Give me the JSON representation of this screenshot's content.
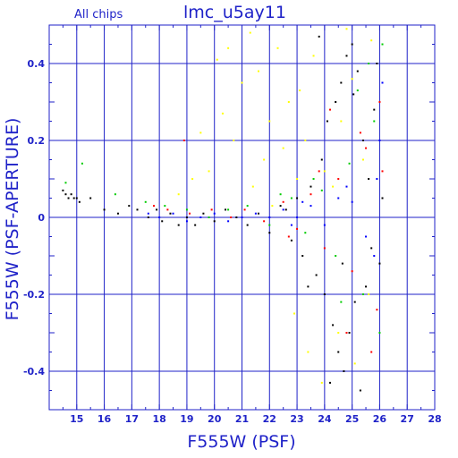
{
  "chart_data": {
    "type": "scatter",
    "title": "lmc_u5ay11",
    "subtitle": "All chips",
    "xlabel": "F555W (PSF)",
    "ylabel": "F555W (PSF-APERTURE)",
    "xlim": [
      14,
      28
    ],
    "ylim": [
      -0.5,
      0.5
    ],
    "x_ticks": [
      "15",
      "16",
      "17",
      "18",
      "19",
      "20",
      "21",
      "22",
      "23",
      "24",
      "25",
      "26",
      "27",
      "28"
    ],
    "y_ticks": [
      "0.4",
      "0.2",
      "0",
      "-0.2",
      "-0.4"
    ],
    "grid": true,
    "legend": "none",
    "series": [
      {
        "color": "#000000",
        "points": [
          [
            14.5,
            0.07
          ],
          [
            14.6,
            0.06
          ],
          [
            14.7,
            0.05
          ],
          [
            14.8,
            0.06
          ],
          [
            14.9,
            0.05
          ],
          [
            15.0,
            0.05
          ],
          [
            15.1,
            0.04
          ],
          [
            15.5,
            0.05
          ],
          [
            16.0,
            0.02
          ],
          [
            16.5,
            0.01
          ],
          [
            16.9,
            0.03
          ],
          [
            17.2,
            0.02
          ],
          [
            17.6,
            0.0
          ],
          [
            17.9,
            0.02
          ],
          [
            18.1,
            -0.01
          ],
          [
            18.4,
            0.01
          ],
          [
            18.7,
            -0.02
          ],
          [
            19.0,
            0.0
          ],
          [
            19.3,
            -0.02
          ],
          [
            19.6,
            0.01
          ],
          [
            20.0,
            -0.01
          ],
          [
            20.4,
            0.02
          ],
          [
            20.8,
            0.0
          ],
          [
            21.2,
            -0.02
          ],
          [
            21.6,
            0.01
          ],
          [
            22.0,
            -0.04
          ],
          [
            22.4,
            0.03
          ],
          [
            22.8,
            -0.06
          ],
          [
            23.0,
            0.05
          ],
          [
            23.2,
            -0.1
          ],
          [
            23.5,
            0.08
          ],
          [
            23.7,
            -0.15
          ],
          [
            23.9,
            0.15
          ],
          [
            24.0,
            -0.2
          ],
          [
            24.1,
            0.25
          ],
          [
            24.3,
            -0.28
          ],
          [
            24.4,
            0.3
          ],
          [
            24.5,
            -0.35
          ],
          [
            24.6,
            0.35
          ],
          [
            24.7,
            -0.4
          ],
          [
            24.8,
            0.42
          ],
          [
            24.9,
            -0.3
          ],
          [
            25.0,
            0.45
          ],
          [
            25.1,
            -0.22
          ],
          [
            25.2,
            0.38
          ],
          [
            25.3,
            -0.45
          ],
          [
            25.4,
            0.2
          ],
          [
            25.5,
            -0.18
          ],
          [
            25.6,
            0.1
          ],
          [
            25.7,
            -0.08
          ],
          [
            25.8,
            0.28
          ],
          [
            25.9,
            0.4
          ],
          [
            26.0,
            -0.12
          ],
          [
            26.1,
            0.05
          ],
          [
            23.8,
            0.47
          ],
          [
            24.2,
            -0.43
          ],
          [
            25.05,
            0.32
          ],
          [
            24.65,
            -0.12
          ],
          [
            23.4,
            -0.18
          ],
          [
            22.6,
            0.02
          ]
        ]
      },
      {
        "color": "#ffff00",
        "points": [
          [
            20.1,
            0.41
          ],
          [
            20.5,
            0.44
          ],
          [
            21.0,
            0.35
          ],
          [
            21.3,
            0.48
          ],
          [
            21.6,
            0.38
          ],
          [
            22.0,
            0.25
          ],
          [
            22.3,
            0.44
          ],
          [
            22.5,
            0.18
          ],
          [
            22.7,
            0.3
          ],
          [
            23.0,
            0.1
          ],
          [
            23.3,
            0.2
          ],
          [
            23.6,
            0.42
          ],
          [
            24.0,
            0.12
          ],
          [
            24.3,
            0.08
          ],
          [
            24.6,
            0.25
          ],
          [
            25.0,
            0.36
          ],
          [
            25.4,
            0.15
          ],
          [
            25.7,
            0.46
          ],
          [
            18.7,
            0.06
          ],
          [
            19.2,
            0.1
          ],
          [
            19.8,
            0.12
          ],
          [
            20.7,
            0.2
          ],
          [
            21.4,
            0.08
          ],
          [
            22.1,
            0.03
          ],
          [
            22.9,
            -0.25
          ],
          [
            23.4,
            -0.35
          ],
          [
            23.9,
            -0.43
          ],
          [
            24.5,
            -0.3
          ],
          [
            25.1,
            -0.38
          ],
          [
            25.6,
            -0.2
          ],
          [
            23.1,
            0.33
          ],
          [
            24.8,
            0.49
          ],
          [
            21.8,
            0.15
          ],
          [
            20.3,
            0.27
          ],
          [
            19.5,
            0.22
          ]
        ]
      },
      {
        "color": "#ff0000",
        "points": [
          [
            17.8,
            0.03
          ],
          [
            18.3,
            0.02
          ],
          [
            19.1,
            0.01
          ],
          [
            19.9,
            0.02
          ],
          [
            20.6,
            0.0
          ],
          [
            21.1,
            0.02
          ],
          [
            21.8,
            -0.01
          ],
          [
            22.5,
            0.04
          ],
          [
            23.0,
            -0.03
          ],
          [
            23.5,
            0.06
          ],
          [
            24.0,
            -0.08
          ],
          [
            24.5,
            0.1
          ],
          [
            25.0,
            -0.14
          ],
          [
            25.5,
            0.18
          ],
          [
            25.9,
            -0.24
          ],
          [
            26.0,
            0.3
          ],
          [
            24.8,
            -0.3
          ],
          [
            25.3,
            0.22
          ],
          [
            23.8,
            0.12
          ],
          [
            22.7,
            -0.05
          ],
          [
            18.9,
            0.2
          ],
          [
            24.2,
            0.28
          ],
          [
            25.7,
            -0.35
          ],
          [
            26.1,
            0.12
          ]
        ]
      },
      {
        "color": "#00cc00",
        "points": [
          [
            14.6,
            0.09
          ],
          [
            15.2,
            0.14
          ],
          [
            16.4,
            0.06
          ],
          [
            17.5,
            0.04
          ],
          [
            18.2,
            0.03
          ],
          [
            19.0,
            0.02
          ],
          [
            19.8,
            0.0
          ],
          [
            20.5,
            0.02
          ],
          [
            21.2,
            0.03
          ],
          [
            22.0,
            -0.02
          ],
          [
            22.8,
            0.05
          ],
          [
            23.3,
            -0.04
          ],
          [
            23.9,
            0.07
          ],
          [
            24.4,
            -0.1
          ],
          [
            24.9,
            0.14
          ],
          [
            25.4,
            -0.2
          ],
          [
            25.8,
            0.25
          ],
          [
            26.0,
            -0.3
          ],
          [
            25.2,
            0.33
          ],
          [
            24.6,
            -0.22
          ],
          [
            25.6,
            0.4
          ],
          [
            26.1,
            0.45
          ],
          [
            23.6,
            0.1
          ],
          [
            22.4,
            0.06
          ]
        ]
      },
      {
        "color": "#0000ff",
        "points": [
          [
            17.6,
            0.01
          ],
          [
            18.0,
            0.0
          ],
          [
            18.5,
            0.01
          ],
          [
            19.0,
            -0.01
          ],
          [
            19.5,
            0.0
          ],
          [
            20.0,
            0.01
          ],
          [
            20.5,
            -0.01
          ],
          [
            21.0,
            0.0
          ],
          [
            21.5,
            0.01
          ],
          [
            22.0,
            0.0
          ],
          [
            22.5,
            0.02
          ],
          [
            23.0,
            0.0
          ],
          [
            23.5,
            0.03
          ],
          [
            24.0,
            -0.02
          ],
          [
            24.5,
            0.05
          ],
          [
            25.0,
            0.04
          ],
          [
            25.5,
            -0.05
          ],
          [
            25.9,
            0.1
          ],
          [
            26.0,
            0.2
          ],
          [
            26.1,
            0.35
          ],
          [
            25.8,
            -0.1
          ],
          [
            24.8,
            0.08
          ],
          [
            23.2,
            0.04
          ],
          [
            22.8,
            -0.02
          ]
        ]
      }
    ]
  }
}
